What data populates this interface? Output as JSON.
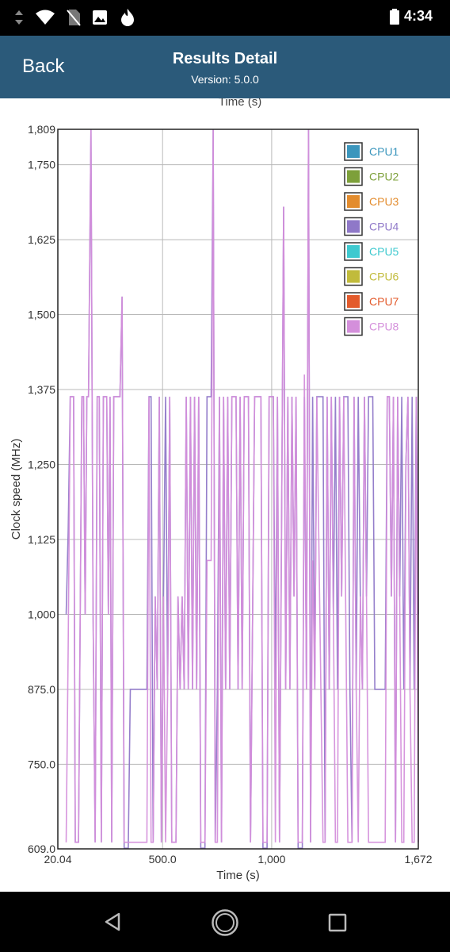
{
  "status_bar": {
    "time": "4:34",
    "icons": [
      "signal-arrows-icon",
      "wifi-icon",
      "no-sim-icon",
      "image-icon",
      "flame-icon",
      "battery-icon"
    ]
  },
  "header": {
    "back_label": "Back",
    "title": "Results Detail",
    "version": "Version: 5.0.0"
  },
  "colors": {
    "header_bg": "#2b5a7a",
    "cpu1": "#3b96bd",
    "cpu2": "#7da03a",
    "cpu3": "#e38c2e",
    "cpu4": "#8f78c8",
    "cpu5": "#3ec9cf",
    "cpu6": "#c1bb3b",
    "cpu7": "#e35b2c",
    "cpu8": "#d48fdb"
  },
  "chart_data": {
    "type": "line",
    "top_label": "Time (s)",
    "xlabel": "Time (s)",
    "ylabel": "Clock speed (MHz)",
    "x_ticks": [
      "20.04",
      "500.0",
      "1,000",
      "1,672"
    ],
    "y_ticks": [
      "609.0",
      "750.0",
      "875.0",
      "1,000",
      "1,125",
      "1,250",
      "1,375",
      "1,500",
      "1,625",
      "1,750",
      "1,809"
    ],
    "xlim": [
      20.04,
      1672
    ],
    "ylim": [
      609,
      1809
    ],
    "grid": true,
    "legend_position": "top-right",
    "series": [
      {
        "name": "CPU1",
        "values": []
      },
      {
        "name": "CPU2",
        "values": []
      },
      {
        "name": "CPU3",
        "values": []
      },
      {
        "name": "CPU4",
        "values": [
          [
            20,
            1000
          ],
          [
            25,
            1140
          ],
          [
            30,
            1363
          ],
          [
            38,
            1363
          ],
          [
            42,
            620
          ],
          [
            50,
            620
          ],
          [
            58,
            1363
          ],
          [
            62,
            1363
          ],
          [
            66,
            1000
          ],
          [
            70,
            1363
          ],
          [
            74,
            1363
          ],
          [
            80,
            1809
          ],
          [
            85,
            1000
          ],
          [
            90,
            620
          ],
          [
            95,
            1363
          ],
          [
            100,
            1363
          ],
          [
            105,
            620
          ],
          [
            110,
            1363
          ],
          [
            118,
            1363
          ],
          [
            122,
            1000
          ],
          [
            126,
            1363
          ],
          [
            130,
            620
          ],
          [
            135,
            1363
          ],
          [
            150,
            1363
          ],
          [
            155,
            1530
          ],
          [
            160,
            610
          ],
          [
            170,
            610
          ],
          [
            175,
            875
          ],
          [
            215,
            875
          ],
          [
            220,
            1363
          ],
          [
            225,
            1363
          ],
          [
            230,
            620
          ],
          [
            235,
            1030
          ],
          [
            240,
            875
          ],
          [
            245,
            1363
          ],
          [
            250,
            620
          ],
          [
            255,
            1030
          ],
          [
            260,
            1363
          ],
          [
            265,
            875
          ],
          [
            270,
            1363
          ],
          [
            275,
            620
          ],
          [
            285,
            620
          ],
          [
            290,
            1030
          ],
          [
            295,
            875
          ],
          [
            300,
            1030
          ],
          [
            305,
            875
          ],
          [
            310,
            1363
          ],
          [
            315,
            875
          ],
          [
            320,
            1363
          ],
          [
            325,
            875
          ],
          [
            330,
            1363
          ],
          [
            335,
            875
          ],
          [
            340,
            1363
          ],
          [
            345,
            610
          ],
          [
            355,
            610
          ],
          [
            360,
            1363
          ],
          [
            370,
            1363
          ],
          [
            375,
            1809
          ],
          [
            380,
            620
          ],
          [
            385,
            875
          ],
          [
            390,
            1363
          ],
          [
            395,
            620
          ],
          [
            400,
            1363
          ],
          [
            405,
            875
          ],
          [
            410,
            1363
          ],
          [
            415,
            875
          ],
          [
            420,
            1363
          ],
          [
            430,
            1363
          ],
          [
            435,
            875
          ],
          [
            440,
            1363
          ],
          [
            445,
            875
          ],
          [
            450,
            1363
          ],
          [
            460,
            1363
          ],
          [
            465,
            620
          ],
          [
            475,
            1363
          ],
          [
            490,
            1363
          ],
          [
            495,
            610
          ],
          [
            505,
            610
          ],
          [
            510,
            1363
          ],
          [
            520,
            1363
          ],
          [
            525,
            875
          ],
          [
            530,
            1363
          ],
          [
            535,
            620
          ],
          [
            545,
            1680
          ],
          [
            550,
            875
          ],
          [
            555,
            1363
          ],
          [
            560,
            875
          ],
          [
            565,
            1363
          ],
          [
            570,
            1030
          ],
          [
            575,
            1363
          ],
          [
            580,
            610
          ],
          [
            590,
            610
          ],
          [
            595,
            1363
          ],
          [
            600,
            875
          ],
          [
            605,
            1809
          ],
          [
            610,
            620
          ],
          [
            615,
            1363
          ],
          [
            620,
            875
          ],
          [
            625,
            1363
          ],
          [
            640,
            1363
          ],
          [
            645,
            620
          ],
          [
            650,
            1363
          ],
          [
            655,
            875
          ],
          [
            660,
            1363
          ],
          [
            665,
            1000
          ],
          [
            670,
            1363
          ],
          [
            675,
            875
          ],
          [
            680,
            1363
          ],
          [
            685,
            1030
          ],
          [
            690,
            1363
          ],
          [
            700,
            1363
          ],
          [
            705,
            875
          ],
          [
            710,
            620
          ],
          [
            715,
            1363
          ],
          [
            720,
            875
          ],
          [
            725,
            1363
          ],
          [
            730,
            1030
          ],
          [
            735,
            875
          ],
          [
            740,
            1363
          ],
          [
            745,
            1030
          ],
          [
            750,
            1363
          ],
          [
            760,
            1363
          ],
          [
            765,
            875
          ],
          [
            790,
            875
          ],
          [
            795,
            1363
          ],
          [
            800,
            1363
          ],
          [
            805,
            1030
          ],
          [
            810,
            1363
          ],
          [
            815,
            620
          ],
          [
            820,
            1363
          ],
          [
            825,
            1030
          ],
          [
            830,
            1363
          ],
          [
            835,
            875
          ],
          [
            840,
            1250
          ],
          [
            845,
            1363
          ],
          [
            850,
            875
          ],
          [
            855,
            1363
          ],
          [
            860,
            875
          ],
          [
            865,
            1363
          ],
          [
            870,
            1000
          ]
        ]
      },
      {
        "name": "CPU5",
        "values": []
      },
      {
        "name": "CPU6",
        "values": []
      },
      {
        "name": "CPU7",
        "values": []
      },
      {
        "name": "CPU8",
        "values": [
          [
            20,
            620
          ],
          [
            25,
            950
          ],
          [
            30,
            1363
          ],
          [
            38,
            1363
          ],
          [
            42,
            620
          ],
          [
            50,
            620
          ],
          [
            58,
            1363
          ],
          [
            62,
            1363
          ],
          [
            66,
            1000
          ],
          [
            70,
            1363
          ],
          [
            74,
            1363
          ],
          [
            80,
            1809
          ],
          [
            85,
            1000
          ],
          [
            90,
            620
          ],
          [
            95,
            1363
          ],
          [
            100,
            1363
          ],
          [
            105,
            620
          ],
          [
            110,
            1363
          ],
          [
            118,
            1363
          ],
          [
            122,
            1000
          ],
          [
            126,
            1363
          ],
          [
            130,
            620
          ],
          [
            135,
            1363
          ],
          [
            150,
            1363
          ],
          [
            155,
            1530
          ],
          [
            160,
            620
          ],
          [
            175,
            620
          ],
          [
            215,
            620
          ],
          [
            220,
            1363
          ],
          [
            225,
            620
          ],
          [
            230,
            620
          ],
          [
            235,
            1030
          ],
          [
            240,
            875
          ],
          [
            245,
            1363
          ],
          [
            250,
            620
          ],
          [
            255,
            1030
          ],
          [
            260,
            620
          ],
          [
            265,
            875
          ],
          [
            270,
            1363
          ],
          [
            275,
            620
          ],
          [
            285,
            620
          ],
          [
            290,
            1030
          ],
          [
            295,
            875
          ],
          [
            300,
            1030
          ],
          [
            305,
            875
          ],
          [
            310,
            1363
          ],
          [
            315,
            875
          ],
          [
            320,
            1363
          ],
          [
            325,
            875
          ],
          [
            330,
            1363
          ],
          [
            335,
            875
          ],
          [
            340,
            1363
          ],
          [
            345,
            620
          ],
          [
            355,
            620
          ],
          [
            360,
            1090
          ],
          [
            370,
            1090
          ],
          [
            375,
            1809
          ],
          [
            380,
            620
          ],
          [
            385,
            620
          ],
          [
            390,
            1363
          ],
          [
            395,
            620
          ],
          [
            400,
            1363
          ],
          [
            405,
            875
          ],
          [
            410,
            1363
          ],
          [
            415,
            875
          ],
          [
            420,
            1363
          ],
          [
            430,
            1363
          ],
          [
            435,
            875
          ],
          [
            440,
            1363
          ],
          [
            445,
            875
          ],
          [
            450,
            1363
          ],
          [
            460,
            1363
          ],
          [
            465,
            620
          ],
          [
            475,
            1363
          ],
          [
            490,
            1363
          ],
          [
            495,
            620
          ],
          [
            505,
            620
          ],
          [
            510,
            1363
          ],
          [
            520,
            1363
          ],
          [
            525,
            620
          ],
          [
            530,
            1363
          ],
          [
            535,
            620
          ],
          [
            545,
            1680
          ],
          [
            550,
            875
          ],
          [
            555,
            1363
          ],
          [
            560,
            875
          ],
          [
            565,
            1363
          ],
          [
            570,
            1030
          ],
          [
            575,
            1363
          ],
          [
            580,
            620
          ],
          [
            590,
            620
          ],
          [
            595,
            1400
          ],
          [
            600,
            875
          ],
          [
            605,
            1809
          ],
          [
            610,
            620
          ],
          [
            615,
            1090
          ],
          [
            620,
            875
          ],
          [
            625,
            1363
          ],
          [
            640,
            620
          ],
          [
            645,
            620
          ],
          [
            650,
            1363
          ],
          [
            655,
            875
          ],
          [
            660,
            1363
          ],
          [
            665,
            1000
          ],
          [
            670,
            620
          ],
          [
            675,
            620
          ],
          [
            680,
            1363
          ],
          [
            685,
            1030
          ],
          [
            690,
            1363
          ],
          [
            700,
            620
          ],
          [
            705,
            620
          ],
          [
            710,
            620
          ],
          [
            715,
            1363
          ],
          [
            720,
            875
          ],
          [
            725,
            620
          ],
          [
            730,
            1030
          ],
          [
            735,
            875
          ],
          [
            740,
            1363
          ],
          [
            745,
            1030
          ],
          [
            750,
            620
          ],
          [
            760,
            620
          ],
          [
            765,
            620
          ],
          [
            790,
            620
          ],
          [
            795,
            1363
          ],
          [
            800,
            1363
          ],
          [
            805,
            1030
          ],
          [
            810,
            1363
          ],
          [
            815,
            620
          ],
          [
            820,
            1363
          ],
          [
            825,
            1030
          ],
          [
            830,
            620
          ],
          [
            835,
            620
          ],
          [
            840,
            1250
          ],
          [
            845,
            1363
          ],
          [
            850,
            875
          ],
          [
            855,
            620
          ],
          [
            860,
            620
          ],
          [
            865,
            1363
          ],
          [
            870,
            620
          ]
        ]
      }
    ]
  }
}
